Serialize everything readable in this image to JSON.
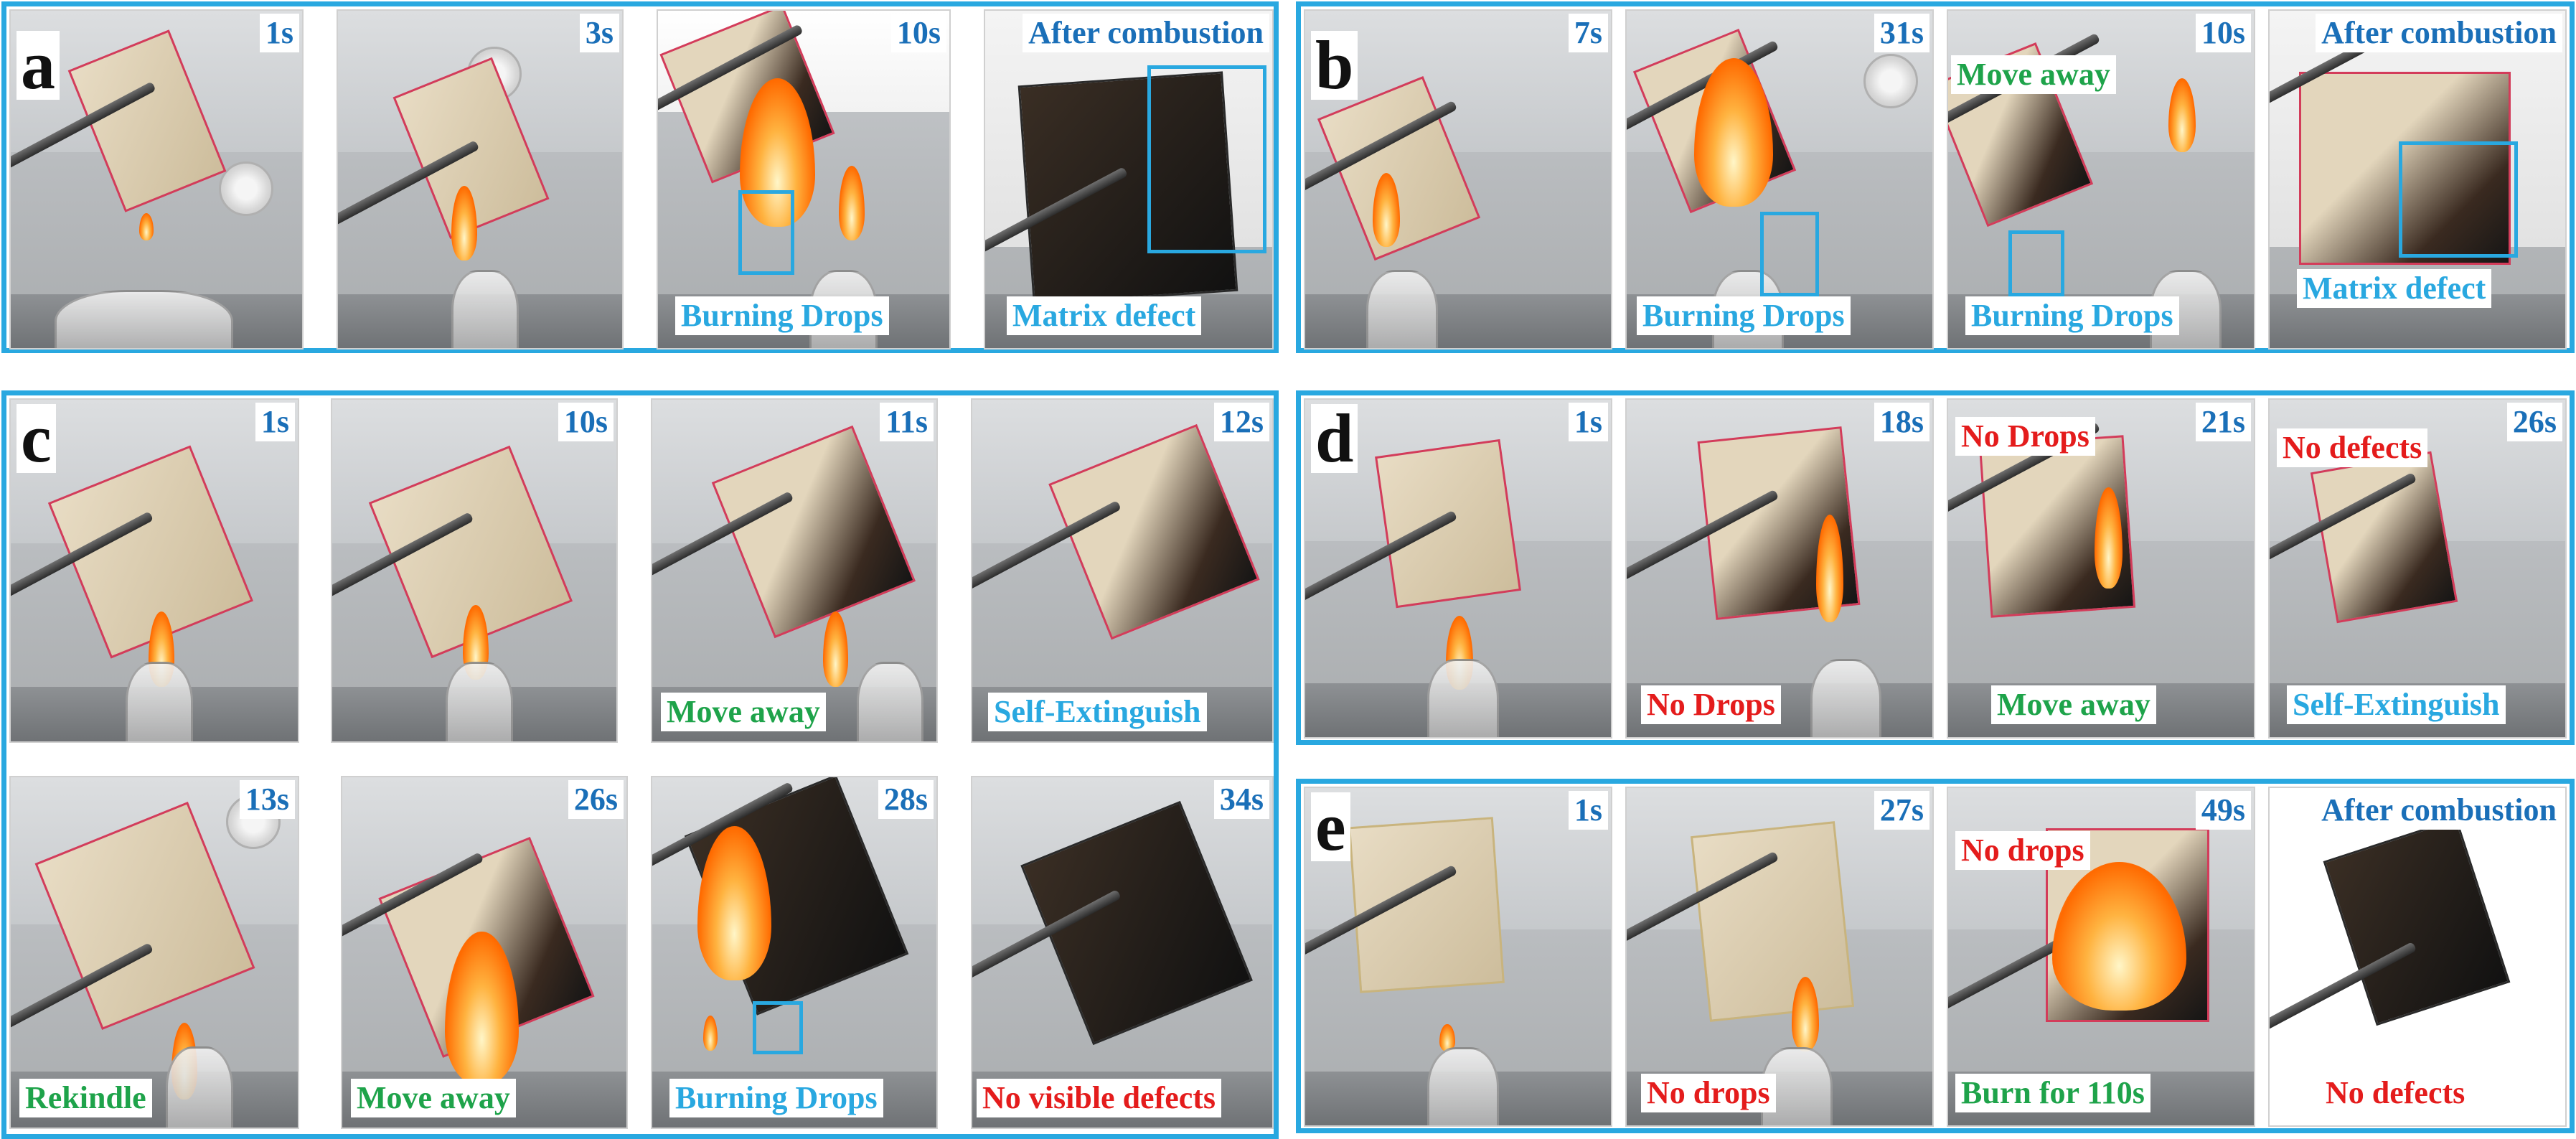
{
  "accent_color": "#29a8e0",
  "panels": {
    "a": {
      "letter": "a",
      "frames": [
        {
          "time": "1s",
          "labels": []
        },
        {
          "time": "3s",
          "labels": []
        },
        {
          "time": "10s",
          "labels": [
            "Burning Drops"
          ]
        },
        {
          "time": "After combustion",
          "labels": [
            "Matrix defect"
          ]
        }
      ]
    },
    "b": {
      "letter": "b",
      "frames": [
        {
          "time": "7s",
          "labels": []
        },
        {
          "time": "31s",
          "labels": [
            "Burning Drops"
          ]
        },
        {
          "time": "10s",
          "labels": [
            "Move away",
            "Burning Drops"
          ]
        },
        {
          "time": "After combustion",
          "labels": [
            "Matrix defect"
          ]
        }
      ]
    },
    "c": {
      "letter": "c",
      "frames": [
        {
          "time": "1s",
          "labels": []
        },
        {
          "time": "10s",
          "labels": []
        },
        {
          "time": "11s",
          "labels": [
            "Move away"
          ]
        },
        {
          "time": "12s",
          "labels": [
            "Self-Extinguish"
          ]
        },
        {
          "time": "13s",
          "labels": [
            "Rekindle"
          ]
        },
        {
          "time": "26s",
          "labels": [
            "Move away"
          ]
        },
        {
          "time": "28s",
          "labels": [
            "Burning Drops"
          ]
        },
        {
          "time": "34s",
          "labels": [
            "No visible defects"
          ]
        }
      ]
    },
    "d": {
      "letter": "d",
      "frames": [
        {
          "time": "1s",
          "labels": []
        },
        {
          "time": "18s",
          "labels": [
            "No Drops"
          ]
        },
        {
          "time": "21s",
          "labels": [
            "No Drops",
            "Move away"
          ]
        },
        {
          "time": "26s",
          "labels": [
            "No defects",
            "Self-Extinguish"
          ]
        }
      ]
    },
    "e": {
      "letter": "e",
      "frames": [
        {
          "time": "1s",
          "labels": []
        },
        {
          "time": "27s",
          "labels": [
            "No drops"
          ]
        },
        {
          "time": "49s",
          "labels": [
            "No drops",
            "Burn for 110s"
          ]
        },
        {
          "time": "After combustion",
          "labels": [
            "No defects"
          ]
        }
      ]
    }
  }
}
